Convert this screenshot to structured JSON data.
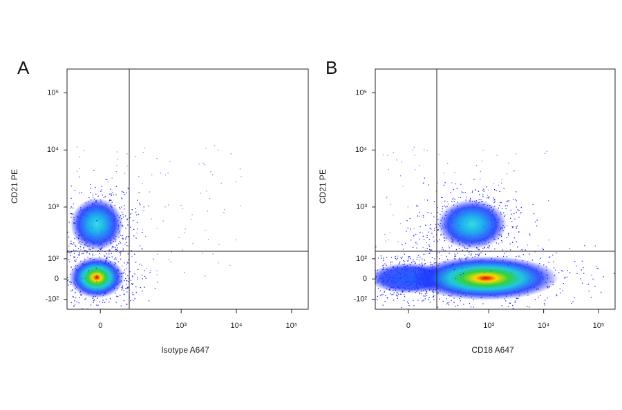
{
  "chart_data": [
    {
      "type": "scatter",
      "panel_label": "A",
      "xlabel": "Isotype A647",
      "ylabel": "CD21 PE",
      "xscale": "biexponential",
      "yscale": "biexponential",
      "xlim": [
        -130,
        200000
      ],
      "ylim": [
        -170,
        262144
      ],
      "xticks": [
        0,
        {
          "value": 1000,
          "label": "10³"
        },
        {
          "value": 10000,
          "label": "10⁴"
        },
        {
          "value": 100000,
          "label": "10⁵"
        }
      ],
      "yticks": [
        {
          "value": -100,
          "label": "-10²"
        },
        0,
        {
          "value": 100,
          "label": "10²"
        },
        {
          "value": 1000,
          "label": "10³"
        },
        {
          "value": 10000,
          "label": "10⁴"
        },
        {
          "value": 100000,
          "label": "10⁵"
        }
      ]
    },
    {
      "type": "scatter",
      "panel_label": "B",
      "xlabel": "CD18 A647",
      "ylabel": "CD21 PE",
      "xscale": "biexponential",
      "yscale": "biexponential",
      "xlim": [
        -130,
        200000
      ],
      "ylim": [
        -170,
        262144
      ],
      "xticks": [
        0,
        {
          "value": 1000,
          "label": "10³"
        },
        {
          "value": 10000,
          "label": "10⁴"
        },
        {
          "value": 100000,
          "label": "10⁵"
        }
      ],
      "yticks": [
        {
          "value": -100,
          "label": "-10²"
        },
        0,
        {
          "value": 100,
          "label": "10²"
        },
        {
          "value": 1000,
          "label": "10³"
        },
        {
          "value": 10000,
          "label": "10⁴"
        },
        {
          "value": 100000,
          "label": "10⁵"
        }
      ]
    }
  ]
}
